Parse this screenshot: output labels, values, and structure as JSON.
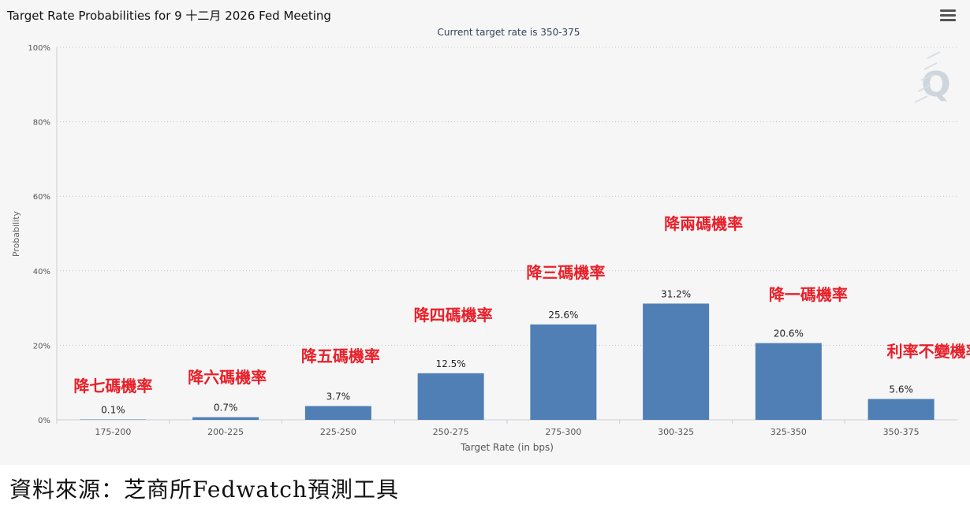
{
  "header": {
    "title": "Target Rate Probabilities for 9 十二月 2026 Fed Meeting",
    "menu_icon": "hamburger-menu-icon"
  },
  "watermark_icon": "q-logo-icon",
  "chart_data": {
    "type": "bar",
    "title": "Target Rate Probabilities for 9 十二月 2026 Fed Meeting",
    "subtitle": "Current target rate is 350-375",
    "xlabel": "Target Rate (in bps)",
    "ylabel": "Probability",
    "ylim": [
      0,
      100
    ],
    "yticks": [
      "0%",
      "20%",
      "40%",
      "60%",
      "80%",
      "100%"
    ],
    "categories": [
      "175-200",
      "200-225",
      "225-250",
      "250-275",
      "275-300",
      "300-325",
      "325-350",
      "350-375"
    ],
    "values": [
      0.1,
      0.7,
      3.7,
      12.5,
      25.6,
      31.2,
      20.6,
      5.6
    ],
    "data_labels": [
      "0.1%",
      "0.7%",
      "3.7%",
      "12.5%",
      "25.6%",
      "31.2%",
      "20.6%",
      "5.6%"
    ],
    "annotations": [
      "降七碼機率",
      "降六碼機率",
      "降五碼機率",
      "降四碼機率",
      "降三碼機率",
      "降兩碼機率",
      "降一碼機率",
      "利率不變機率"
    ],
    "grid": true,
    "legend": "none",
    "bar_color": "#4f7fb5",
    "annotation_color": "#e8202a"
  },
  "source": "資料來源：芝商所Fedwatch預測工具"
}
